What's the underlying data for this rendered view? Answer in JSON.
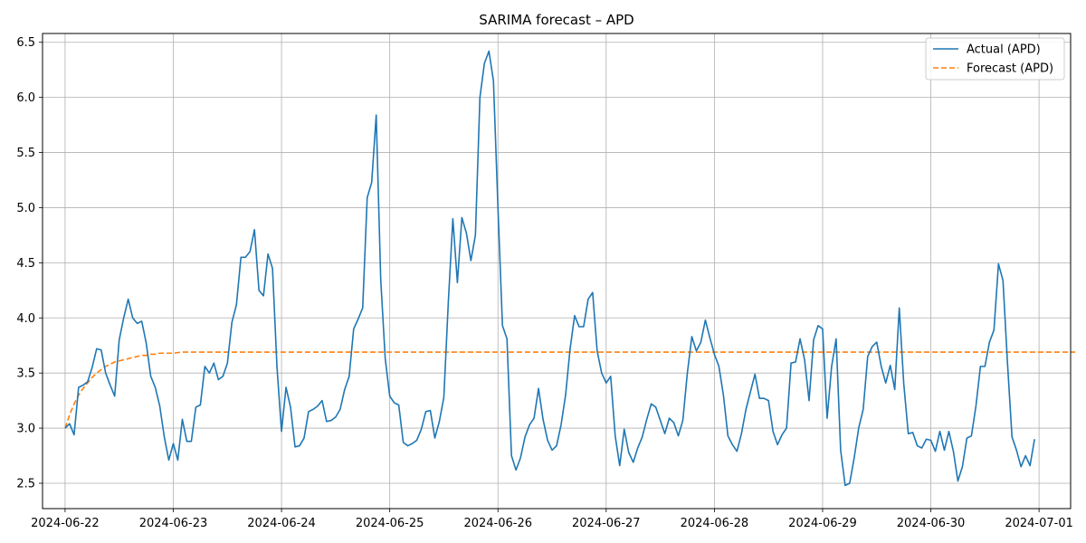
{
  "chart_data": {
    "type": "line",
    "title": "SARIMA forecast – APD",
    "xlabel": "",
    "ylabel": "",
    "x_ticks": [
      "2024-06-22",
      "2024-06-23",
      "2024-06-24",
      "2024-06-25",
      "2024-06-26",
      "2024-06-27",
      "2024-06-28",
      "2024-06-29",
      "2024-06-30",
      "2024-07-01"
    ],
    "y_ticks": [
      "2.5",
      "3.0",
      "3.5",
      "4.0",
      "4.5",
      "5.0",
      "5.5",
      "6.0",
      "6.5"
    ],
    "xlim": [
      "2024-06-21 19:00",
      "2024-07-01 07:00"
    ],
    "ylim": [
      2.27,
      6.58
    ],
    "grid": true,
    "legend_position": "top-right",
    "series": [
      {
        "name": "Actual (APD)",
        "color": "#1f77b4",
        "style": "solid",
        "x_start": "2024-06-22 00:00",
        "x_step_hours": 1,
        "values": [
          3.0,
          3.04,
          2.94,
          3.37,
          3.39,
          3.42,
          3.55,
          3.72,
          3.71,
          3.5,
          3.39,
          3.29,
          3.8,
          4.0,
          4.17,
          4.0,
          3.95,
          3.97,
          3.77,
          3.47,
          3.37,
          3.2,
          2.92,
          2.71,
          2.86,
          2.71,
          3.08,
          2.88,
          2.88,
          3.19,
          3.21,
          3.56,
          3.5,
          3.59,
          3.44,
          3.47,
          3.59,
          3.96,
          4.12,
          4.55,
          4.55,
          4.6,
          4.8,
          4.25,
          4.2,
          4.58,
          4.45,
          3.55,
          2.97,
          3.37,
          3.19,
          2.83,
          2.84,
          2.91,
          3.15,
          3.17,
          3.2,
          3.25,
          3.06,
          3.07,
          3.1,
          3.17,
          3.35,
          3.47,
          3.9,
          3.99,
          4.09,
          5.09,
          5.23,
          5.84,
          4.35,
          3.63,
          3.29,
          3.23,
          3.21,
          2.87,
          2.84,
          2.86,
          2.89,
          2.99,
          3.15,
          3.16,
          2.91,
          3.06,
          3.28,
          4.15,
          4.9,
          4.32,
          4.91,
          4.77,
          4.52,
          4.75,
          6.0,
          6.31,
          6.42,
          6.15,
          5.0,
          3.93,
          3.81,
          2.75,
          2.62,
          2.73,
          2.92,
          3.03,
          3.09,
          3.36,
          3.08,
          2.89,
          2.8,
          2.84,
          3.03,
          3.3,
          3.72,
          4.02,
          3.92,
          3.92,
          4.17,
          4.23,
          3.7,
          3.5,
          3.41,
          3.47,
          2.93,
          2.66,
          2.99,
          2.78,
          2.69,
          2.82,
          2.92,
          3.08,
          3.22,
          3.19,
          3.07,
          2.95,
          3.09,
          3.05,
          2.93,
          3.07,
          3.5,
          3.83,
          3.7,
          3.78,
          3.98,
          3.82,
          3.67,
          3.56,
          3.3,
          2.93,
          2.85,
          2.79,
          2.95,
          3.17,
          3.33,
          3.49,
          3.27,
          3.27,
          3.25,
          2.97,
          2.85,
          2.94,
          3.0,
          3.59,
          3.6,
          3.81,
          3.62,
          3.25,
          3.8,
          3.93,
          3.9,
          3.09,
          3.56,
          3.81,
          2.8,
          2.48,
          2.5,
          2.73,
          3.0,
          3.17,
          3.65,
          3.74,
          3.78,
          3.56,
          3.41,
          3.57,
          3.35,
          4.09,
          3.4,
          2.95,
          2.96,
          2.84,
          2.82,
          2.9,
          2.89,
          2.79,
          2.97,
          2.8,
          2.97,
          2.79,
          2.52,
          2.65,
          2.91,
          2.93,
          3.2,
          3.56,
          3.56,
          3.78,
          3.89,
          4.49,
          4.34,
          3.59,
          2.92,
          2.8,
          2.65,
          2.75,
          2.66,
          2.9
        ]
      },
      {
        "name": "Forecast (APD)",
        "color": "#ff7f0e",
        "style": "dashed",
        "x_start": "2024-06-22 00:00",
        "x_step_hours": 1,
        "values": [
          3.0,
          3.12,
          3.22,
          3.3,
          3.36,
          3.41,
          3.46,
          3.5,
          3.53,
          3.56,
          3.58,
          3.6,
          3.61,
          3.62,
          3.63,
          3.64,
          3.65,
          3.66,
          3.66,
          3.67,
          3.67,
          3.68,
          3.68,
          3.68,
          3.68,
          3.685,
          3.69,
          3.69,
          3.69,
          3.69,
          3.69,
          3.69,
          3.69,
          3.69,
          3.69,
          3.69,
          3.69,
          3.69,
          3.69,
          3.69,
          3.69,
          3.69,
          3.69,
          3.69,
          3.69,
          3.69,
          3.69,
          3.69,
          3.69,
          3.69,
          3.69,
          3.69,
          3.69,
          3.69,
          3.69,
          3.69,
          3.69,
          3.69,
          3.69,
          3.69,
          3.69,
          3.69,
          3.69,
          3.69,
          3.69,
          3.69,
          3.69,
          3.69,
          3.69,
          3.69,
          3.69,
          3.69,
          3.69,
          3.69,
          3.69,
          3.69,
          3.69,
          3.69,
          3.69,
          3.69,
          3.69,
          3.69,
          3.69,
          3.69,
          3.69,
          3.69,
          3.69,
          3.69,
          3.69,
          3.69,
          3.69,
          3.69,
          3.69,
          3.69,
          3.69,
          3.69,
          3.69,
          3.69,
          3.69,
          3.69,
          3.69,
          3.69,
          3.69,
          3.69,
          3.69,
          3.69,
          3.69,
          3.69,
          3.69,
          3.69,
          3.69,
          3.69,
          3.69,
          3.69,
          3.69,
          3.69,
          3.69,
          3.69,
          3.69,
          3.69,
          3.69,
          3.69,
          3.69,
          3.69,
          3.69,
          3.69,
          3.69,
          3.69,
          3.69,
          3.69,
          3.69,
          3.69,
          3.69,
          3.69,
          3.69,
          3.69,
          3.69,
          3.69,
          3.69,
          3.69,
          3.69,
          3.69,
          3.69,
          3.69,
          3.69,
          3.69,
          3.69,
          3.69,
          3.69,
          3.69,
          3.69,
          3.69,
          3.69,
          3.69,
          3.69,
          3.69,
          3.69,
          3.69,
          3.69,
          3.69,
          3.69,
          3.69,
          3.69,
          3.69,
          3.69,
          3.69,
          3.69,
          3.69,
          3.69,
          3.69,
          3.69,
          3.69,
          3.69,
          3.69,
          3.69,
          3.69,
          3.69,
          3.69,
          3.69,
          3.69,
          3.69,
          3.69,
          3.69,
          3.69,
          3.69,
          3.69,
          3.69,
          3.69,
          3.69,
          3.69,
          3.69,
          3.69,
          3.69,
          3.69,
          3.69,
          3.69,
          3.69,
          3.69,
          3.69,
          3.69,
          3.69,
          3.69,
          3.69,
          3.69,
          3.69,
          3.69,
          3.69,
          3.69,
          3.69,
          3.69,
          3.69,
          3.69,
          3.69,
          3.69,
          3.69,
          3.69,
          3.69,
          3.69,
          3.69,
          3.69,
          3.69,
          3.69,
          3.69,
          3.69,
          3.69
        ]
      }
    ]
  }
}
